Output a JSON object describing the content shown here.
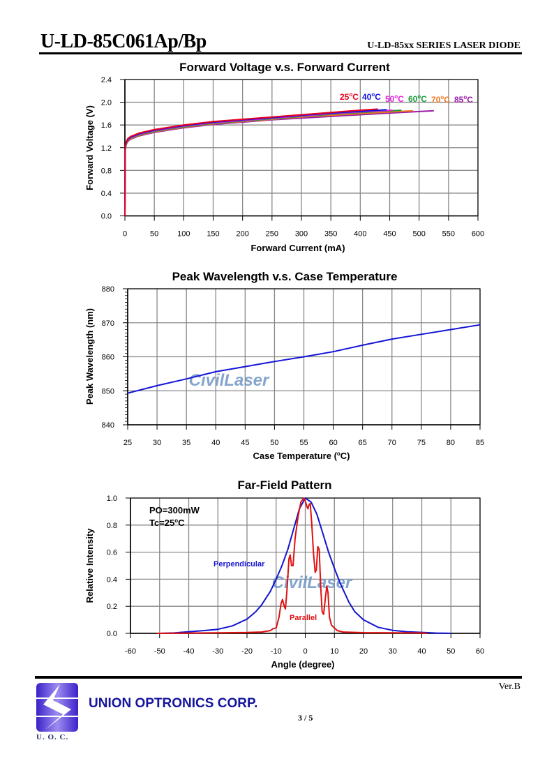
{
  "header": {
    "title": "U-LD-85C061Ap/Bp",
    "series": "U-LD-85xx SERIES LASER DIODE"
  },
  "watermark": "CivilLaser",
  "chart_data": [
    {
      "type": "line",
      "title": "Forward Voltage v.s. Forward Current",
      "xlabel": "Forward Current (mA)",
      "ylabel": "Forward Voltage (V)",
      "xlim": [
        0,
        600
      ],
      "ylim": [
        0,
        2.4
      ],
      "xticks": [
        "0",
        "50",
        "100",
        "150",
        "200",
        "250",
        "300",
        "350",
        "400",
        "450",
        "500",
        "550",
        "600"
      ],
      "yticks": [
        "0.0",
        "0.4",
        "0.8",
        "1.2",
        "1.6",
        "2.0",
        "2.4"
      ],
      "grid": true,
      "legend_position": "top-right",
      "series": [
        {
          "name": "25°C",
          "label_main": "25",
          "label_sup": "o",
          "label_unit": "C",
          "color": "#e8001e",
          "x": [
            0,
            0.5,
            2,
            5,
            10,
            25,
            50,
            100,
            150,
            200,
            250,
            300,
            350,
            400,
            430
          ],
          "y": [
            0,
            1.2,
            1.3,
            1.36,
            1.4,
            1.46,
            1.52,
            1.6,
            1.66,
            1.7,
            1.74,
            1.78,
            1.82,
            1.86,
            1.88
          ]
        },
        {
          "name": "40°C",
          "label_main": "40",
          "label_sup": "o",
          "label_unit": "C",
          "color": "#1010e0",
          "x": [
            0,
            0.5,
            2,
            5,
            10,
            25,
            50,
            100,
            150,
            200,
            250,
            300,
            350,
            400,
            445
          ],
          "y": [
            0,
            1.19,
            1.29,
            1.35,
            1.39,
            1.45,
            1.51,
            1.59,
            1.65,
            1.69,
            1.73,
            1.77,
            1.81,
            1.84,
            1.87
          ]
        },
        {
          "name": "50°C",
          "label_main": "50",
          "label_sup": "o",
          "label_unit": "C",
          "color": "#e81ee0",
          "x": [
            0,
            0.5,
            2,
            5,
            10,
            25,
            50,
            100,
            150,
            200,
            250,
            300,
            350,
            400,
            455
          ],
          "y": [
            0,
            1.18,
            1.28,
            1.34,
            1.38,
            1.44,
            1.5,
            1.58,
            1.64,
            1.68,
            1.72,
            1.76,
            1.8,
            1.83,
            1.86
          ]
        },
        {
          "name": "60°C",
          "label_main": "60",
          "label_sup": "o",
          "label_unit": "C",
          "color": "#1a9a3a",
          "x": [
            0,
            0.5,
            2,
            5,
            10,
            25,
            50,
            100,
            150,
            200,
            250,
            300,
            350,
            400,
            470
          ],
          "y": [
            0,
            1.17,
            1.27,
            1.33,
            1.37,
            1.43,
            1.49,
            1.57,
            1.63,
            1.67,
            1.71,
            1.75,
            1.79,
            1.82,
            1.86
          ]
        },
        {
          "name": "70°C",
          "label_main": "70",
          "label_sup": "o",
          "label_unit": "C",
          "color": "#f07820",
          "x": [
            0,
            0.5,
            2,
            5,
            10,
            25,
            50,
            100,
            150,
            200,
            250,
            300,
            350,
            400,
            490
          ],
          "y": [
            0,
            1.16,
            1.26,
            1.32,
            1.36,
            1.42,
            1.48,
            1.56,
            1.62,
            1.66,
            1.7,
            1.74,
            1.77,
            1.8,
            1.85
          ]
        },
        {
          "name": "85°C",
          "label_main": "85",
          "label_sup": "o",
          "label_unit": "C",
          "color": "#9a1aa8",
          "x": [
            0,
            0.5,
            2,
            5,
            10,
            25,
            50,
            100,
            150,
            200,
            250,
            300,
            350,
            400,
            450,
            525
          ],
          "y": [
            0,
            1.15,
            1.25,
            1.31,
            1.35,
            1.41,
            1.47,
            1.55,
            1.61,
            1.65,
            1.69,
            1.72,
            1.75,
            1.78,
            1.81,
            1.85
          ]
        }
      ]
    },
    {
      "type": "line",
      "title": "Peak Wavelength v.s. Case Temperature",
      "xlabel": "Case Temperature (°C)",
      "xlabel_main": "Case Temperature (",
      "xlabel_sup": "o",
      "xlabel_end": "C)",
      "ylabel": "Peak Wavelength (nm)",
      "xlim": [
        25,
        85
      ],
      "ylim": [
        840,
        880
      ],
      "xticks": [
        "25",
        "30",
        "35",
        "40",
        "45",
        "50",
        "55",
        "60",
        "65",
        "70",
        "75",
        "80",
        "85"
      ],
      "yticks": [
        "840",
        "850",
        "860",
        "870",
        "880"
      ],
      "grid": true,
      "series": [
        {
          "name": "Peak Wavelength",
          "color": "#1414d8",
          "x": [
            25,
            30,
            35,
            40,
            45,
            50,
            55,
            60,
            65,
            70,
            75,
            80,
            85
          ],
          "y": [
            849.3,
            851.5,
            853.5,
            855.6,
            857.1,
            858.6,
            860.0,
            861.5,
            863.4,
            865.2,
            866.6,
            868.0,
            869.4
          ]
        }
      ]
    },
    {
      "type": "line",
      "title": "Far-Field Pattern",
      "xlabel": "Angle (degree)",
      "ylabel": "Relative Intensity",
      "xlim": [
        -60,
        60
      ],
      "ylim": [
        0,
        1.0
      ],
      "xticks": [
        "-60",
        "-50",
        "-40",
        "-30",
        "-20",
        "-10",
        "0",
        "10",
        "20",
        "30",
        "40",
        "50",
        "60"
      ],
      "yticks": [
        "0.0",
        "0.2",
        "0.4",
        "0.6",
        "0.8",
        "1.0"
      ],
      "grid": true,
      "annotations": {
        "po": "PO=300mW",
        "tc_main": "Tc=25",
        "tc_sup": "o",
        "tc_unit": "C"
      },
      "series": [
        {
          "name": "Perpendicular",
          "color": "#1414d0",
          "x": [
            -50,
            -45,
            -42,
            -40,
            -35,
            -30,
            -25,
            -20,
            -17,
            -15,
            -12,
            -10,
            -8,
            -6,
            -4,
            -2,
            0,
            2,
            4,
            6,
            8,
            10,
            12,
            15,
            17,
            20,
            25,
            30,
            35,
            40,
            42,
            45,
            50
          ],
          "y": [
            0,
            0.003,
            0.008,
            0.012,
            0.02,
            0.03,
            0.055,
            0.105,
            0.16,
            0.21,
            0.31,
            0.4,
            0.5,
            0.62,
            0.77,
            0.92,
            1.0,
            0.97,
            0.88,
            0.74,
            0.6,
            0.48,
            0.37,
            0.23,
            0.16,
            0.1,
            0.045,
            0.022,
            0.012,
            0.007,
            0.005,
            0.002,
            0
          ]
        },
        {
          "name": "Parallel",
          "color": "#e01010",
          "x": [
            -51,
            -40,
            -30,
            -20,
            -15,
            -12,
            -11,
            -10,
            -9,
            -8.3,
            -7.8,
            -7.2,
            -6.8,
            -6.2,
            -5.6,
            -5.2,
            -4.7,
            -4.2,
            -3.5,
            -2.5,
            -1.5,
            -0.5,
            0,
            0.5,
            0.9,
            1.3,
            1.7,
            2.2,
            2.8,
            3.4,
            3.8,
            4.3,
            4.8,
            5.3,
            5.8,
            6.3,
            6.9,
            7.4,
            7.8,
            8.3,
            9,
            10,
            11,
            13,
            20,
            30,
            40,
            42
          ],
          "y": [
            0,
            0.002,
            0.004,
            0.006,
            0.01,
            0.02,
            0.035,
            0.04,
            0.12,
            0.22,
            0.25,
            0.2,
            0.18,
            0.34,
            0.55,
            0.58,
            0.5,
            0.5,
            0.7,
            0.86,
            0.97,
            1.0,
            0.98,
            0.94,
            0.92,
            0.95,
            0.96,
            0.82,
            0.6,
            0.45,
            0.47,
            0.64,
            0.62,
            0.35,
            0.16,
            0.14,
            0.26,
            0.35,
            0.3,
            0.12,
            0.06,
            0.04,
            0.02,
            0.01,
            0.005,
            0.004,
            0.003,
            0
          ]
        }
      ]
    }
  ],
  "footer": {
    "version": "Ver.B",
    "company": "UNION OPTRONICS CORP.",
    "page": "3 / 5",
    "logo_text": "U. O. C."
  }
}
